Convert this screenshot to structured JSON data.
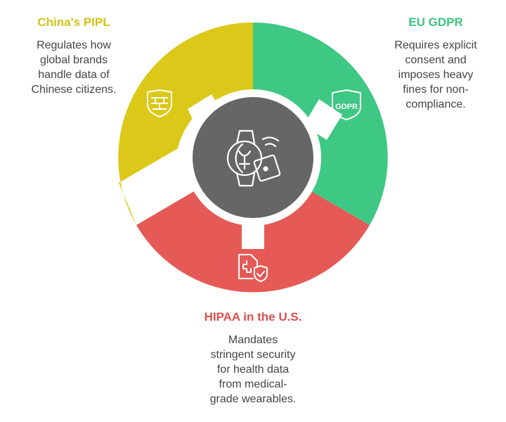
{
  "segments": [
    {
      "id": "pipl",
      "title": "China's PIPL",
      "description_lines": [
        "Regulates how",
        "global brands",
        "handle data of",
        "Chinese citizens."
      ],
      "color": "#DCC818",
      "icon": "firewall-shield-icon"
    },
    {
      "id": "gdpr",
      "title": "EU GDPR",
      "description_lines": [
        "Requires explicit",
        "consent and",
        "imposes heavy",
        "fines for non-",
        "compliance."
      ],
      "color": "#3EC884",
      "icon": "gdpr-shield-icon",
      "icon_text": "GDPR"
    },
    {
      "id": "hipaa",
      "title": "HIPAA in the U.S.",
      "description_lines": [
        "Mandates",
        "stringent security",
        "for health data",
        "from medical-",
        "grade wearables."
      ],
      "color": "#E55A56",
      "icon": "medical-document-check-icon"
    }
  ],
  "center": {
    "color": "#666666",
    "icon": "smartwatch-privacy-icon"
  },
  "colors": {
    "pipl_title": "#D4C213",
    "gdpr_title": "#3CC480",
    "hipaa_title": "#E04E4E"
  }
}
